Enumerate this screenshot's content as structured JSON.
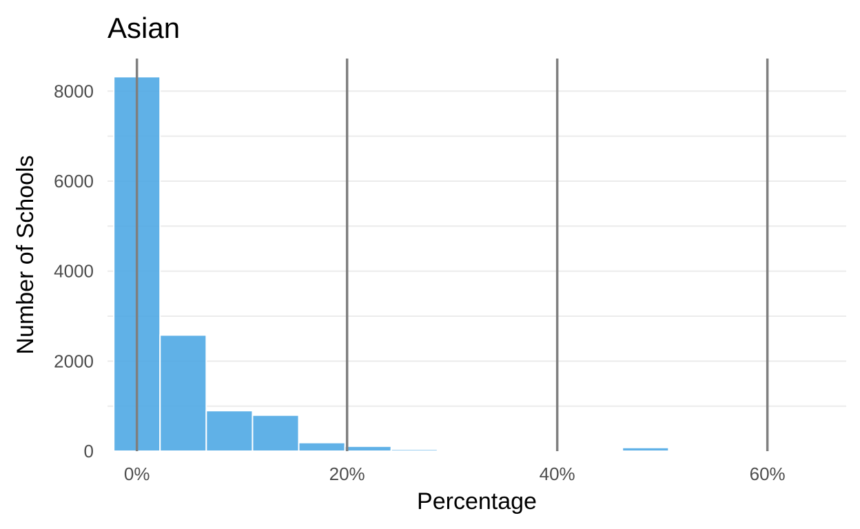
{
  "chart_data": {
    "type": "bar",
    "title": "Asian",
    "xlabel": "Percentage",
    "ylabel": "Number of Schools",
    "xlim": [
      -2.8,
      67.5
    ],
    "ylim": [
      0,
      8800
    ],
    "x_ticks": [
      {
        "value": 0,
        "label": "0%"
      },
      {
        "value": 20,
        "label": "20%"
      },
      {
        "value": 40,
        "label": "40%"
      },
      {
        "value": 60,
        "label": "60%"
      }
    ],
    "y_ticks": [
      {
        "value": 0,
        "label": "0"
      },
      {
        "value": 2000,
        "label": "2000"
      },
      {
        "value": 4000,
        "label": "4000"
      },
      {
        "value": 6000,
        "label": "6000"
      },
      {
        "value": 8000,
        "label": "8000"
      }
    ],
    "y_minor_gridlines": [
      1000,
      3000,
      5000,
      7000
    ],
    "bin_width": 4.4,
    "bins": [
      {
        "x0": -2.2,
        "x1": 2.2,
        "count": 8320
      },
      {
        "x0": 2.2,
        "x1": 6.6,
        "count": 2580
      },
      {
        "x0": 6.6,
        "x1": 11.0,
        "count": 900
      },
      {
        "x0": 11.0,
        "x1": 15.4,
        "count": 800
      },
      {
        "x0": 15.4,
        "x1": 19.8,
        "count": 190
      },
      {
        "x0": 19.8,
        "x1": 24.2,
        "count": 110
      },
      {
        "x0": 24.2,
        "x1": 28.6,
        "count": 40
      },
      {
        "x0": 28.6,
        "x1": 33.0,
        "count": 0
      },
      {
        "x0": 33.0,
        "x1": 37.4,
        "count": 0
      },
      {
        "x0": 37.4,
        "x1": 41.8,
        "count": 0
      },
      {
        "x0": 41.8,
        "x1": 46.2,
        "count": 0
      },
      {
        "x0": 46.2,
        "x1": 50.6,
        "count": 80
      }
    ],
    "reference_lines_x": [
      0,
      20,
      40,
      60
    ],
    "grid": true,
    "bar_color": "#4fa8e4",
    "reference_line_color": "#7f7f7f"
  }
}
